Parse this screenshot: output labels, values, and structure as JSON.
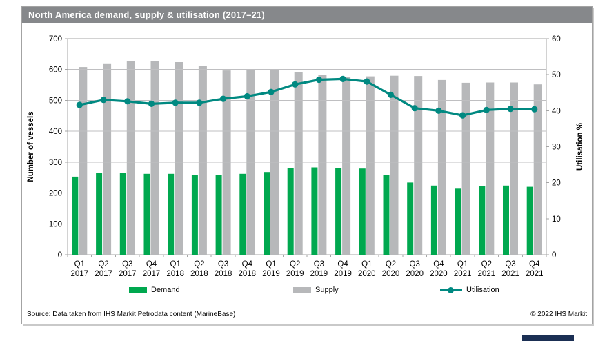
{
  "title": "North America demand, supply & utilisation (2017–21)",
  "footer": {
    "source": "Source: Data taken from IHS Markit Petrodata content (MarineBase)",
    "copyright": "© 2022 IHS Markit"
  },
  "colors": {
    "title_bar": "#86888b",
    "demand": "#00a84f",
    "supply": "#b7b8ba",
    "utilisation": "#008981",
    "grid": "#bfbfc1",
    "plot_border": "#a6a6a6",
    "brand_navy": "#1b2f54"
  },
  "chart_data": {
    "type": "bar",
    "subtype": "grouped bars with overlaid line on secondary axis",
    "title": "North America demand, supply & utilisation (2017–21)",
    "categories": [
      "Q1 2017",
      "Q2 2017",
      "Q3 2017",
      "Q4 2017",
      "Q1 2018",
      "Q2 2018",
      "Q3 2018",
      "Q4 2018",
      "Q1 2019",
      "Q2 2019",
      "Q3 2019",
      "Q4 2019",
      "Q1 2020",
      "Q2 2020",
      "Q3 2020",
      "Q4 2020",
      "Q1 2021",
      "Q2 2021",
      "Q3 2021",
      "Q4 2021"
    ],
    "series": [
      {
        "name": "Demand",
        "type": "bar",
        "axis": "left",
        "values": [
          253,
          266,
          266,
          262,
          262,
          258,
          259,
          262,
          268,
          280,
          283,
          281,
          279,
          258,
          234,
          224,
          214,
          222,
          224,
          220
        ]
      },
      {
        "name": "Supply",
        "type": "bar",
        "axis": "left",
        "values": [
          608,
          620,
          628,
          627,
          624,
          612,
          597,
          598,
          600,
          592,
          582,
          577,
          578,
          580,
          579,
          566,
          557,
          558,
          558,
          552
        ]
      },
      {
        "name": "Utilisation",
        "type": "line",
        "axis": "right",
        "values": [
          41.6,
          43.0,
          42.6,
          41.9,
          42.2,
          42.2,
          43.3,
          44.0,
          45.2,
          47.3,
          48.6,
          48.8,
          48.1,
          44.4,
          40.7,
          40.0,
          38.7,
          40.2,
          40.5,
          40.4
        ]
      }
    ],
    "left_axis": {
      "label": "Number of vessels",
      "min": 0,
      "max": 700,
      "step": 100
    },
    "right_axis": {
      "label": "Utilisation %",
      "min": 0,
      "max": 60,
      "step": 10
    },
    "grid": "horizontal only",
    "legend": [
      "Demand",
      "Supply",
      "Utilisation"
    ],
    "legend_position": "bottom"
  }
}
